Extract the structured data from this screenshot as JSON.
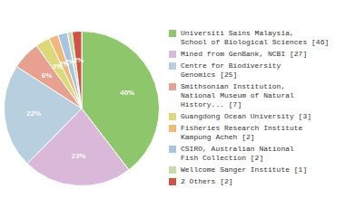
{
  "chart_data": {
    "type": "pie",
    "categories": [
      "Universiti Sains Malaysia,\nSchool of Biological Sciences [46]",
      "Mined from GenBank, NCBI [27]",
      "Centre for Biodiversity\nGenomics [25]",
      "Smithsonian Institution,\nNational Museum of Natural\nHistory... [7]",
      "Guangdong Ocean University [3]",
      "Fisheries Research Institute\nKampung Acheh [2]",
      "CSIRO, Australian National\nFish Collection [2]",
      "Wellcome Sanger Institute [1]",
      "2 Others [2]"
    ],
    "values": [
      40,
      23,
      22,
      6,
      3,
      2,
      2,
      1,
      2
    ],
    "value_labels": [
      "40%",
      "23%",
      "22%",
      "6%",
      "3%",
      "2%",
      "2%",
      null,
      "2%"
    ],
    "colors": [
      "#8dc66b",
      "#d9b8d9",
      "#b8cfe0",
      "#e8a090",
      "#ddd87a",
      "#f0b87a",
      "#a8c4e0",
      "#c8dba8",
      "#cc5545"
    ],
    "data_labels": true,
    "legend": "right"
  }
}
